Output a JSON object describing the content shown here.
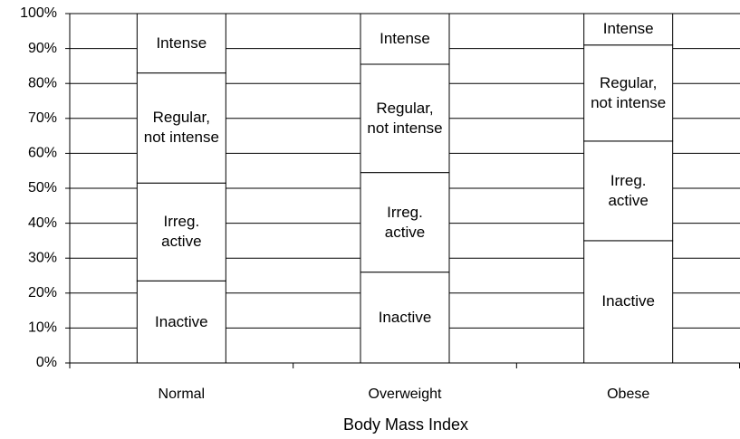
{
  "chart_data": {
    "type": "stacked_bar",
    "x_label": "Body Mass Index",
    "categories": [
      "Normal",
      "Overweight",
      "Obese"
    ],
    "series": [
      {
        "name": "Inactive",
        "color": "#ffffff",
        "values": [
          23.5,
          26,
          35
        ]
      },
      {
        "name": "Irreg. active",
        "color": "#ffffff",
        "values": [
          28,
          28.5,
          28.5
        ]
      },
      {
        "name": "Regular, not intense",
        "color": "#ffffff",
        "values": [
          31.5,
          31,
          27.5
        ]
      },
      {
        "name": "Intense",
        "color": "#ffffff",
        "values": [
          17,
          14.5,
          9
        ]
      }
    ],
    "ylim": [
      0,
      100
    ],
    "yticks": [
      {
        "value": 0,
        "label": "0%"
      },
      {
        "value": 10,
        "label": "10%"
      },
      {
        "value": 20,
        "label": "20%"
      },
      {
        "value": 30,
        "label": "30%"
      },
      {
        "value": 40,
        "label": "40%"
      },
      {
        "value": 50,
        "label": "50%"
      },
      {
        "value": 60,
        "label": "60%"
      },
      {
        "value": 70,
        "label": "70%"
      },
      {
        "value": 80,
        "label": "80%"
      },
      {
        "value": 90,
        "label": "90%"
      },
      {
        "value": 100,
        "label": "100%"
      }
    ],
    "grid": true
  }
}
